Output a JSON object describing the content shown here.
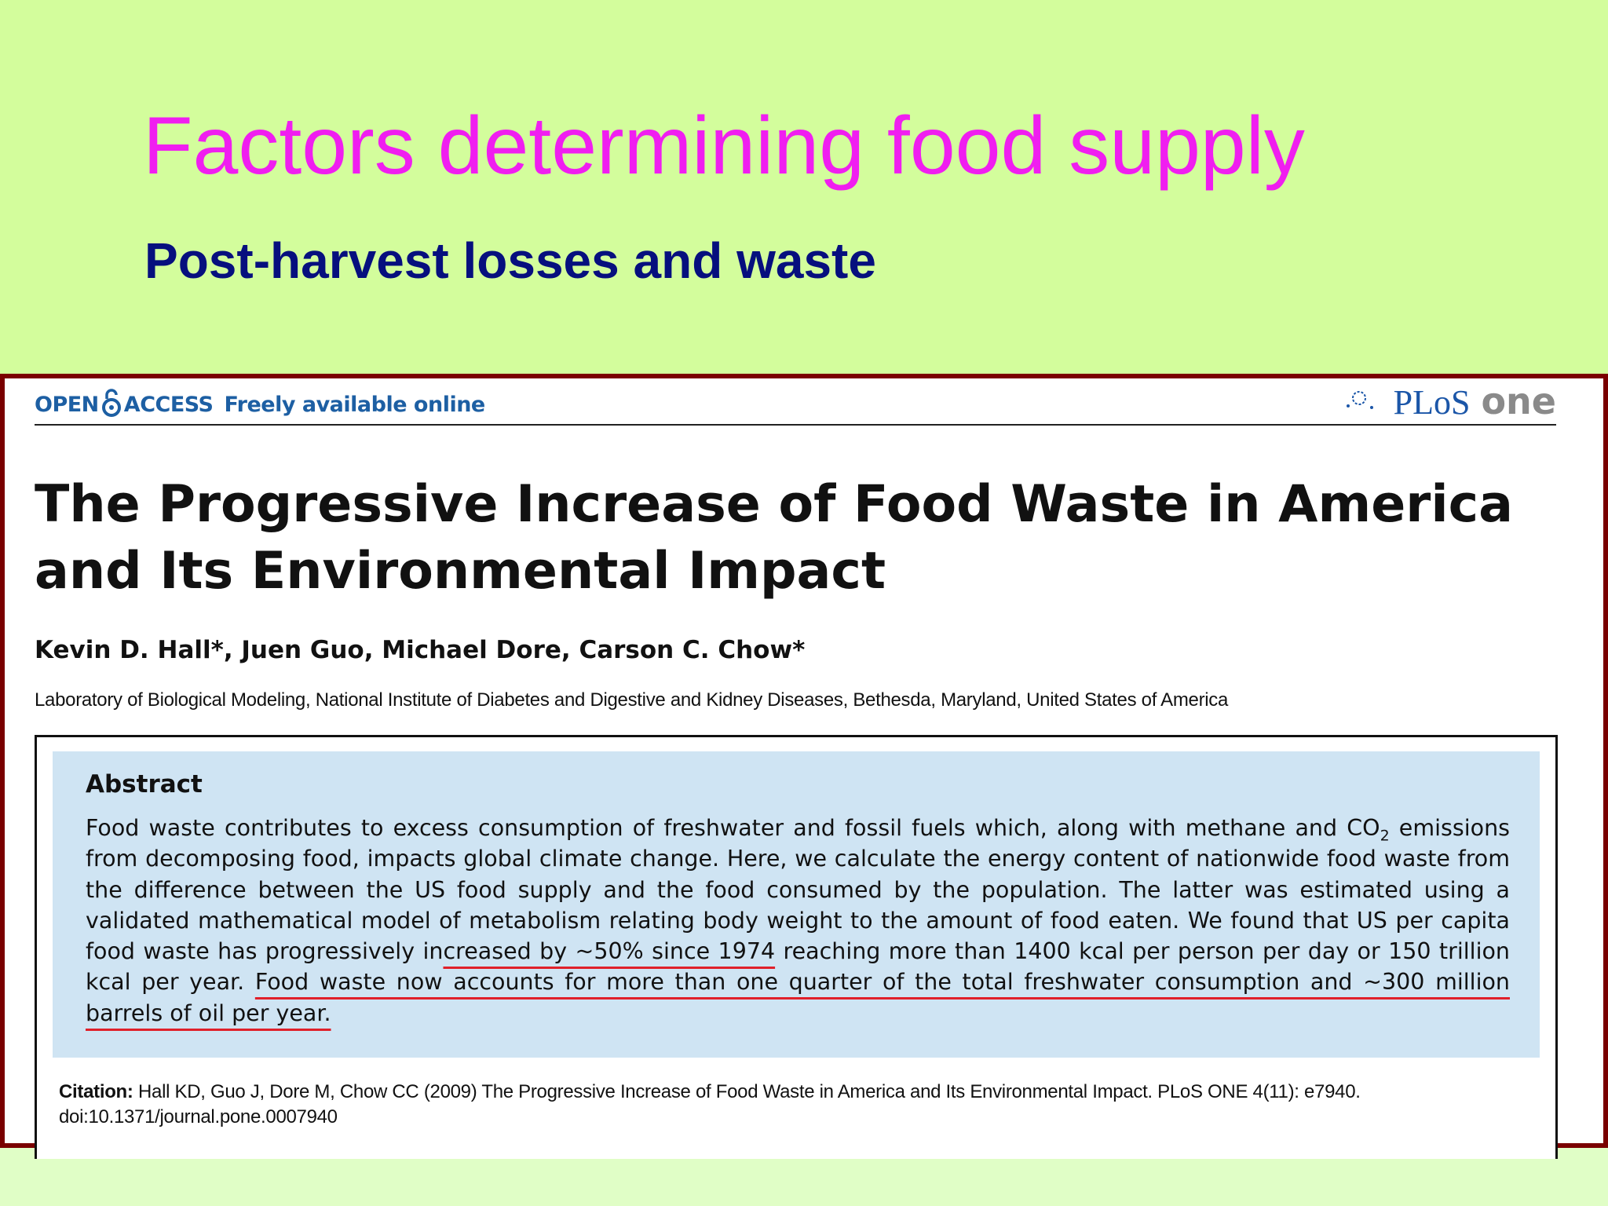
{
  "slide": {
    "title": "Factors determining food supply",
    "subtitle": "Post-harvest losses and waste"
  },
  "paper": {
    "open_access_prefix": "OPEN",
    "open_access_suffix": "ACCESS",
    "freely_available": "Freely available online",
    "journal_plos": "PLoS",
    "journal_one": "one",
    "title": "The Progressive Increase of Food Waste in America and Its Environmental Impact",
    "authors": "Kevin D. Hall*, Juen Guo, Michael Dore, Carson C. Chow*",
    "affiliation": "Laboratory of Biological Modeling, National Institute of Diabetes and Digestive and Kidney Diseases, Bethesda, Maryland, United States of America",
    "abstract": {
      "heading": "Abstract",
      "part1": "Food waste contributes to excess consumption of freshwater and fossil fuels which, along with methane and CO",
      "sub": "2",
      "part2": " emissions from decomposing food, impacts global climate change. Here, we calculate the energy content of nationwide food waste from the difference between the US food supply and the food consumed by the population. The latter was estimated using a validated mathematical model of metabolism relating body weight to the amount of food eaten. We found that US per capita food waste has progressively in",
      "highlight1": "creased by ~50% since 1974",
      "part3": " reaching more than 1400 kcal per person per day or 150 trillion kcal per year. ",
      "highlight2": "Food waste now accounts for more than one quarter of the total freshwater consumption and ~300 million barrels of oil per year."
    },
    "citation": {
      "label": "Citation:",
      "text": " Hall KD, Guo J, Dore M, Chow CC (2009) The Progressive Increase of Food Waste in America and Its Environmental Impact. PLoS ONE 4(11): e7940. doi:10.1371/journal.pone.0007940"
    }
  },
  "colors": {
    "background": "#d3fd9c",
    "title": "#f01ef0",
    "subtitle": "#060f7e",
    "frame": "#7a0000",
    "abstract_bg": "#cfe4f3",
    "highlight_underline": "#e0202a"
  }
}
